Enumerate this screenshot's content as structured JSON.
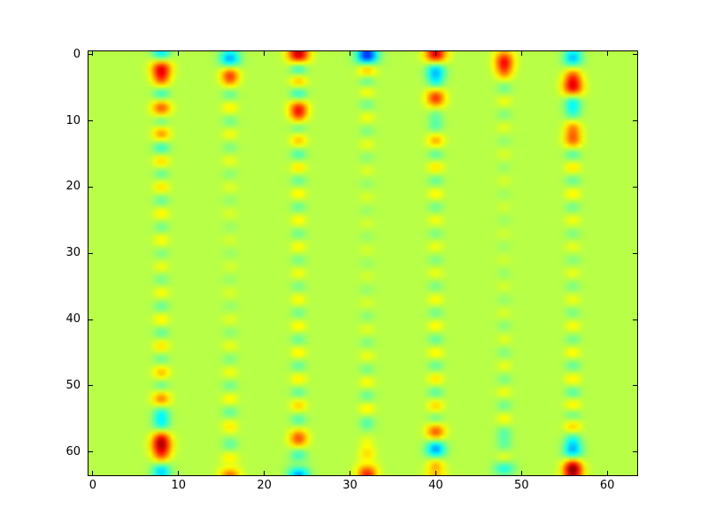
{
  "figure": {
    "background_color": "#ffffff",
    "frame_color": "#000000",
    "tick_color": "#000000",
    "tick_label_color": "#000000"
  },
  "chart_data": {
    "type": "heatmap",
    "title": "",
    "xlabel": "",
    "ylabel": "",
    "x_range": [
      -0.5,
      63.5
    ],
    "y_range": [
      63.5,
      -0.5
    ],
    "y_axis_inverted": true,
    "grid": false,
    "legend": false,
    "colormap": "jet",
    "background_value": 0,
    "background_color": "#b8ff47",
    "value_to_color": {
      "base_t": 0.555,
      "scale_t": 0.33
    },
    "x_ticks": [
      0,
      10,
      20,
      30,
      40,
      50,
      60
    ],
    "y_ticks": [
      0,
      10,
      20,
      30,
      40,
      50,
      60
    ],
    "description": "64x64 heatmap, uniform yellow-green background with blurred oscillating vertical stripes at x = 8,16,24,32,40,48,56; strong blobs near top (y=0-8) and bottom (y=55-63), faint alternation in the middle. Values are signed amplitudes mapped through the jet colormap (positive = yellow/orange/red, negative = teal/cyan/blue).",
    "stripes": [
      {
        "x": 8,
        "blobs": [
          [
            0,
            -0.75
          ],
          [
            2,
            1.05
          ],
          [
            4,
            0.5
          ],
          [
            6,
            -0.55
          ],
          [
            8,
            0.8
          ],
          [
            10,
            -0.4
          ],
          [
            12,
            0.6
          ],
          [
            14,
            -0.5
          ],
          [
            16,
            0.4
          ],
          [
            18,
            -0.3
          ],
          [
            20,
            0.35
          ],
          [
            22,
            -0.3
          ],
          [
            24,
            0.3
          ],
          [
            26,
            -0.25
          ],
          [
            28,
            0.25
          ],
          [
            30,
            -0.2
          ],
          [
            32,
            0.2
          ],
          [
            34,
            -0.22
          ],
          [
            36,
            0.25
          ],
          [
            38,
            -0.28
          ],
          [
            40,
            0.3
          ],
          [
            42,
            -0.3
          ],
          [
            44,
            0.35
          ],
          [
            46,
            -0.3
          ],
          [
            48,
            0.45
          ],
          [
            50,
            -0.35
          ],
          [
            52,
            0.65
          ],
          [
            54,
            -0.5
          ],
          [
            56,
            -0.55
          ],
          [
            57.5,
            0.45
          ],
          [
            59,
            1.05
          ],
          [
            61,
            0.45
          ],
          [
            62.8,
            -0.75
          ]
        ]
      },
      {
        "x": 16,
        "blobs": [
          [
            1,
            -1.05
          ],
          [
            2.5,
            0.9
          ],
          [
            4,
            0.35
          ],
          [
            6,
            -0.3
          ],
          [
            8,
            0.3
          ],
          [
            10,
            -0.25
          ],
          [
            12,
            0.22
          ],
          [
            14,
            -0.2
          ],
          [
            16,
            0.18
          ],
          [
            18,
            -0.15
          ],
          [
            20,
            0.14
          ],
          [
            22,
            -0.12
          ],
          [
            24,
            0.12
          ],
          [
            26,
            -0.1
          ],
          [
            28,
            0.1
          ],
          [
            30,
            -0.1
          ],
          [
            32,
            0.1
          ],
          [
            34,
            -0.1
          ],
          [
            36,
            0.12
          ],
          [
            38,
            -0.12
          ],
          [
            40,
            0.14
          ],
          [
            42,
            -0.15
          ],
          [
            44,
            0.18
          ],
          [
            46,
            -0.2
          ],
          [
            48,
            0.22
          ],
          [
            50,
            -0.25
          ],
          [
            52,
            0.28
          ],
          [
            54,
            -0.3
          ],
          [
            56,
            0.3
          ],
          [
            59,
            -0.3
          ],
          [
            61,
            0.4
          ],
          [
            62.3,
            -0.5
          ],
          [
            63.4,
            0.9
          ]
        ]
      },
      {
        "x": 24,
        "blobs": [
          [
            0,
            1.25
          ],
          [
            2,
            -0.7
          ],
          [
            4,
            0.55
          ],
          [
            6,
            -0.6
          ],
          [
            8,
            0.85
          ],
          [
            9.5,
            0.4
          ],
          [
            11,
            -0.35
          ],
          [
            13,
            0.45
          ],
          [
            15,
            -0.4
          ],
          [
            17,
            0.35
          ],
          [
            19,
            -0.3
          ],
          [
            21,
            0.3
          ],
          [
            23,
            -0.28
          ],
          [
            25,
            0.28
          ],
          [
            27,
            -0.25
          ],
          [
            29,
            0.25
          ],
          [
            31,
            -0.22
          ],
          [
            33,
            0.22
          ],
          [
            35,
            -0.22
          ],
          [
            37,
            0.25
          ],
          [
            39,
            -0.25
          ],
          [
            41,
            0.28
          ],
          [
            43,
            -0.28
          ],
          [
            45,
            0.3
          ],
          [
            47,
            -0.3
          ],
          [
            49,
            0.32
          ],
          [
            51,
            -0.32
          ],
          [
            53,
            0.4
          ],
          [
            55,
            -0.35
          ],
          [
            58,
            0.75
          ],
          [
            60.5,
            -0.5
          ],
          [
            62,
            0.45
          ],
          [
            63.4,
            -1.0
          ]
        ]
      },
      {
        "x": 32,
        "blobs": [
          [
            0.3,
            -1.35
          ],
          [
            2.2,
            0.85
          ],
          [
            3.8,
            -0.5
          ],
          [
            5.5,
            0.3
          ],
          [
            7.5,
            -0.25
          ],
          [
            9.5,
            0.22
          ],
          [
            11.5,
            -0.2
          ],
          [
            13.5,
            0.18
          ],
          [
            15.5,
            -0.15
          ],
          [
            17.5,
            0.13
          ],
          [
            19.5,
            -0.12
          ],
          [
            21.5,
            0.12
          ],
          [
            23.5,
            -0.1
          ],
          [
            25.5,
            0.1
          ],
          [
            27.5,
            -0.1
          ],
          [
            29.5,
            0.1
          ],
          [
            31.5,
            -0.1
          ],
          [
            33.5,
            0.1
          ],
          [
            35.5,
            -0.12
          ],
          [
            37.5,
            0.12
          ],
          [
            39.5,
            -0.15
          ],
          [
            41.5,
            0.15
          ],
          [
            43.5,
            -0.18
          ],
          [
            45.5,
            0.2
          ],
          [
            47.5,
            -0.22
          ],
          [
            49.5,
            0.25
          ],
          [
            51.5,
            -0.28
          ],
          [
            53.5,
            0.3
          ],
          [
            55.5,
            -0.32
          ],
          [
            58.5,
            0.15
          ],
          [
            60.5,
            0.35
          ],
          [
            61.8,
            -0.3
          ],
          [
            63.2,
            0.95
          ]
        ]
      },
      {
        "x": 40,
        "blobs": [
          [
            0.2,
            1.25
          ],
          [
            2,
            -0.95
          ],
          [
            4.2,
            -0.45
          ],
          [
            6.5,
            0.85
          ],
          [
            9,
            -0.25
          ],
          [
            11,
            -0.3
          ],
          [
            13,
            0.5
          ],
          [
            15,
            -0.35
          ],
          [
            17,
            0.35
          ],
          [
            19,
            -0.3
          ],
          [
            21,
            0.28
          ],
          [
            23,
            -0.25
          ],
          [
            25,
            0.22
          ],
          [
            27,
            -0.2
          ],
          [
            29,
            0.2
          ],
          [
            31,
            -0.2
          ],
          [
            33,
            0.2
          ],
          [
            35,
            -0.22
          ],
          [
            37,
            0.25
          ],
          [
            39,
            -0.25
          ],
          [
            41,
            0.28
          ],
          [
            43,
            -0.3
          ],
          [
            45,
            0.3
          ],
          [
            47,
            -0.3
          ],
          [
            49,
            0.35
          ],
          [
            51,
            -0.35
          ],
          [
            53,
            0.4
          ],
          [
            55,
            -0.35
          ],
          [
            57,
            0.8
          ],
          [
            59.5,
            -0.9
          ],
          [
            62,
            0.55
          ],
          [
            63.3,
            -0.6
          ],
          [
            63.9,
            0.9
          ]
        ]
      },
      {
        "x": 48,
        "blobs": [
          [
            1,
            0.9
          ],
          [
            2.8,
            0.4
          ],
          [
            5,
            -0.25
          ],
          [
            7,
            0.2
          ],
          [
            9,
            -0.18
          ],
          [
            11,
            0.15
          ],
          [
            13,
            -0.13
          ],
          [
            15,
            0.12
          ],
          [
            17,
            -0.1
          ],
          [
            19,
            0.1
          ],
          [
            21,
            -0.08
          ],
          [
            23,
            0.08
          ],
          [
            25,
            -0.08
          ],
          [
            27,
            0.08
          ],
          [
            29,
            -0.08
          ],
          [
            31,
            0.08
          ],
          [
            33,
            -0.1
          ],
          [
            35,
            0.1
          ],
          [
            37,
            -0.12
          ],
          [
            39,
            0.12
          ],
          [
            41,
            -0.15
          ],
          [
            43,
            0.15
          ],
          [
            45,
            -0.18
          ],
          [
            47,
            0.18
          ],
          [
            49,
            -0.2
          ],
          [
            51,
            0.2
          ],
          [
            53,
            -0.25
          ],
          [
            55,
            0.25
          ],
          [
            57,
            -0.28
          ],
          [
            59,
            -0.25
          ],
          [
            61,
            0.3
          ],
          [
            63,
            -1.0
          ],
          [
            63.9,
            0.85
          ]
        ]
      },
      {
        "x": 56,
        "blobs": [
          [
            0.5,
            -0.75
          ],
          [
            3,
            0.5
          ],
          [
            5,
            1.05
          ],
          [
            7,
            -0.65
          ],
          [
            9,
            -0.35
          ],
          [
            11,
            0.5
          ],
          [
            13,
            0.65
          ],
          [
            15,
            -0.4
          ],
          [
            17,
            0.35
          ],
          [
            19,
            -0.3
          ],
          [
            21,
            0.3
          ],
          [
            23,
            -0.25
          ],
          [
            25,
            0.22
          ],
          [
            27,
            -0.2
          ],
          [
            29,
            0.18
          ],
          [
            31,
            -0.18
          ],
          [
            33,
            0.18
          ],
          [
            35,
            -0.2
          ],
          [
            37,
            0.2
          ],
          [
            39,
            -0.22
          ],
          [
            41,
            0.25
          ],
          [
            43,
            -0.25
          ],
          [
            45,
            0.28
          ],
          [
            47,
            -0.3
          ],
          [
            49,
            0.32
          ],
          [
            51,
            -0.35
          ],
          [
            53,
            0.4
          ],
          [
            54.5,
            -0.45
          ],
          [
            56,
            0.5
          ],
          [
            58,
            -0.4
          ],
          [
            60,
            -0.8
          ],
          [
            61.8,
            0.55
          ],
          [
            63,
            1.05
          ]
        ]
      }
    ]
  }
}
